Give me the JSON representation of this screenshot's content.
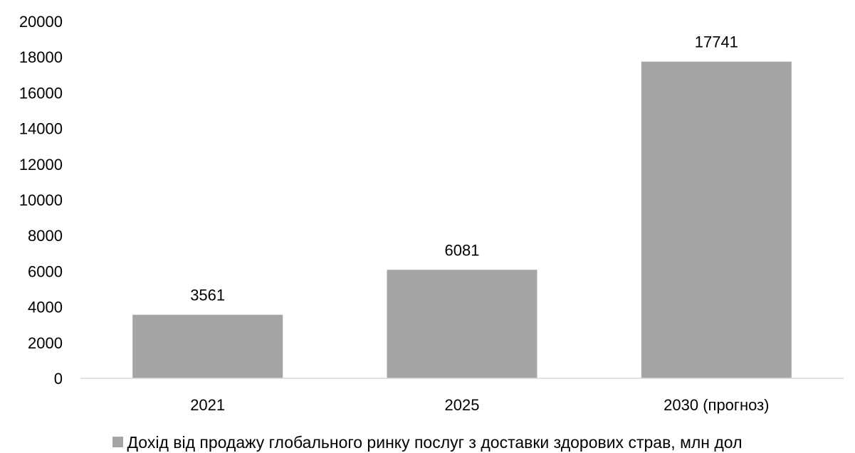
{
  "chart_data": {
    "type": "bar",
    "categories": [
      "2021",
      "2025",
      "2030 (прогноз)"
    ],
    "series": [
      {
        "name": "Дохід від продажу глобального ринку послуг з доставки здорових страв, млн дол",
        "values": [
          3561,
          6081,
          17741
        ],
        "color": "#a5a5a5"
      }
    ],
    "data_labels": [
      "3561",
      "6081",
      "17741"
    ],
    "ylim": [
      0,
      20000
    ],
    "yticks": [
      0,
      2000,
      4000,
      6000,
      8000,
      10000,
      12000,
      14000,
      16000,
      18000,
      20000
    ],
    "grid": false,
    "legend_position": "bottom"
  }
}
